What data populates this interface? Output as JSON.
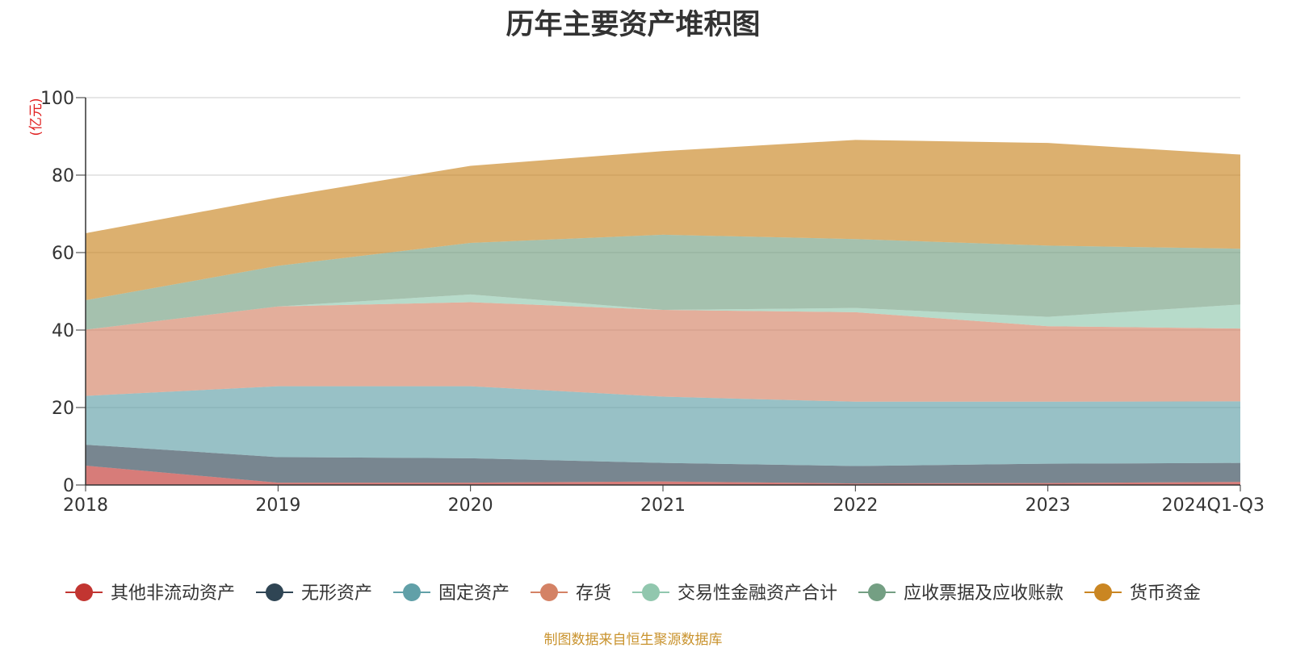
{
  "chart_data": {
    "type": "area",
    "stacked": true,
    "title": "历年主要资产堆积图",
    "unit_label": "(亿元)",
    "source_note": "制图数据来自恒生聚源数据库",
    "categories": [
      "2018",
      "2019",
      "2020",
      "2021",
      "2022",
      "2023",
      "2024Q1-Q3"
    ],
    "ylim": [
      0,
      100
    ],
    "yticks": [
      0,
      20,
      40,
      60,
      80,
      100
    ],
    "grid": true,
    "legend_position": "bottom",
    "series": [
      {
        "name": "其他非流动资产",
        "color": "#c23531",
        "values": [
          5.0,
          0.6,
          0.6,
          0.9,
          0.4,
          0.5,
          0.8
        ]
      },
      {
        "name": "无形资产",
        "color": "#2f4554",
        "values": [
          5.4,
          6.6,
          6.3,
          4.8,
          4.5,
          5.0,
          4.9
        ]
      },
      {
        "name": "固定资产",
        "color": "#61a0a8",
        "values": [
          12.6,
          18.3,
          18.6,
          17.1,
          16.6,
          16.0,
          15.9
        ]
      },
      {
        "name": "存货",
        "color": "#d48265",
        "values": [
          17.1,
          20.6,
          21.7,
          22.4,
          23.1,
          19.5,
          18.8
        ]
      },
      {
        "name": "交易性金融资产合计",
        "color": "#91c7ae",
        "values": [
          0.0,
          0.0,
          2.0,
          0.0,
          1.1,
          2.4,
          6.2
        ]
      },
      {
        "name": "应收票据及应收账款",
        "color": "#749f83",
        "values": [
          7.6,
          10.5,
          13.3,
          19.4,
          17.8,
          18.4,
          14.4
        ]
      },
      {
        "name": "货币资金",
        "color": "#ca8622",
        "values": [
          17.3,
          17.6,
          19.9,
          21.6,
          25.6,
          26.5,
          24.3
        ]
      }
    ]
  }
}
